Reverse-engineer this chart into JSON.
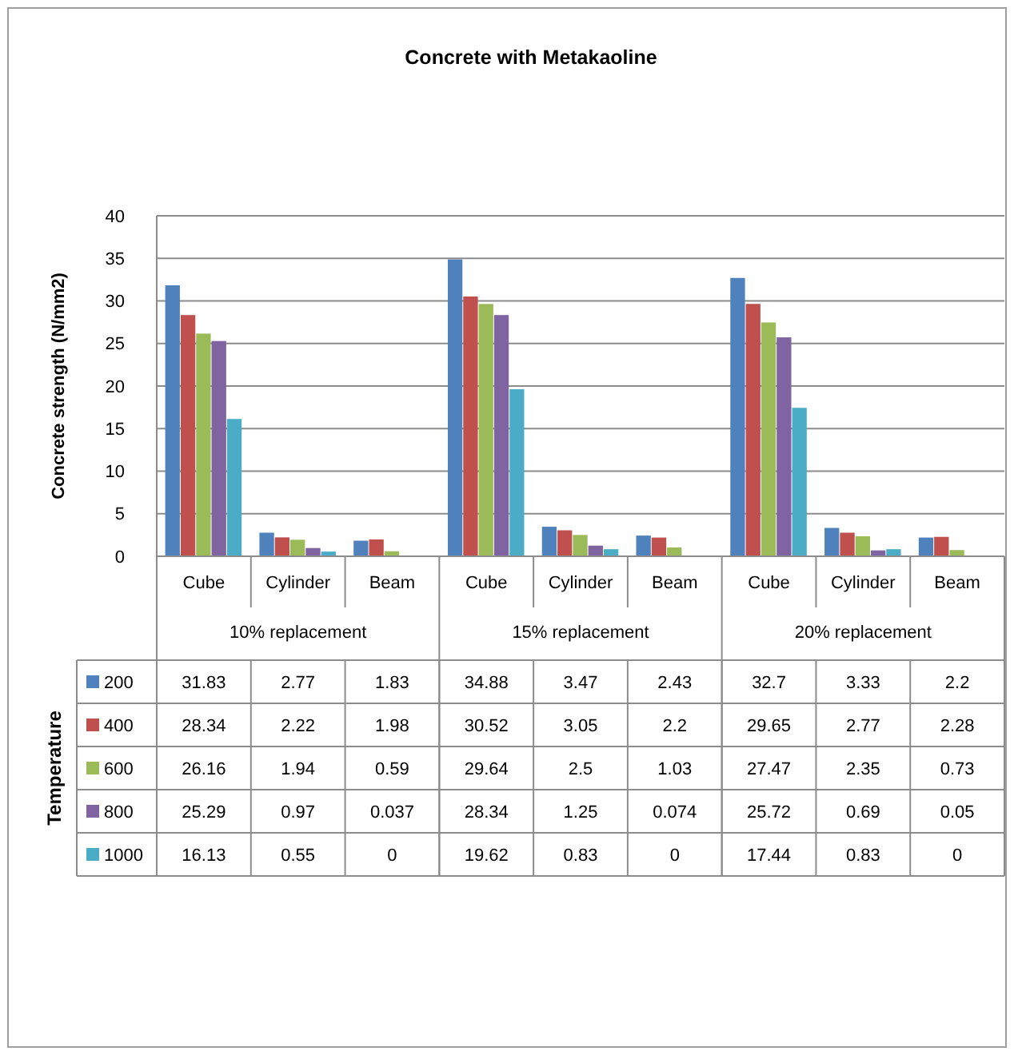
{
  "chart_data": {
    "type": "bar",
    "title": "Concrete with Metakaoline",
    "ylabel": "Concrete strength (N/mm2)",
    "legend_title": "Temperature",
    "categories": [
      "Cube",
      "Cylinder",
      "Beam",
      "Cube",
      "Cylinder",
      "Beam",
      "Cube",
      "Cylinder",
      "Beam"
    ],
    "annotations": [
      "10% replacement",
      "15% replacement",
      "20% replacement"
    ],
    "series": [
      {
        "name": "200",
        "color": "#4f81bd",
        "values": [
          31.83,
          2.77,
          1.83,
          34.88,
          3.47,
          2.43,
          32.7,
          3.33,
          2.2
        ]
      },
      {
        "name": "400",
        "color": "#c0504d",
        "values": [
          28.34,
          2.22,
          1.98,
          30.52,
          3.05,
          2.2,
          29.65,
          2.77,
          2.28
        ]
      },
      {
        "name": "600",
        "color": "#9bbb59",
        "values": [
          26.16,
          1.94,
          0.59,
          29.64,
          2.5,
          1.03,
          27.47,
          2.35,
          0.73
        ]
      },
      {
        "name": "800",
        "color": "#8064a2",
        "values": [
          25.29,
          0.97,
          0.037,
          28.34,
          1.25,
          0.074,
          25.72,
          0.69,
          0.05
        ]
      },
      {
        "name": "1000",
        "color": "#4bacc6",
        "values": [
          16.13,
          0.55,
          0,
          19.62,
          0.83,
          0,
          17.44,
          0.83,
          0
        ]
      }
    ],
    "ylim": [
      0,
      40
    ],
    "yticks": [
      0,
      5,
      10,
      15,
      20,
      25,
      30,
      35,
      40
    ],
    "grid": "y",
    "legend": "left",
    "data_labels": true
  }
}
